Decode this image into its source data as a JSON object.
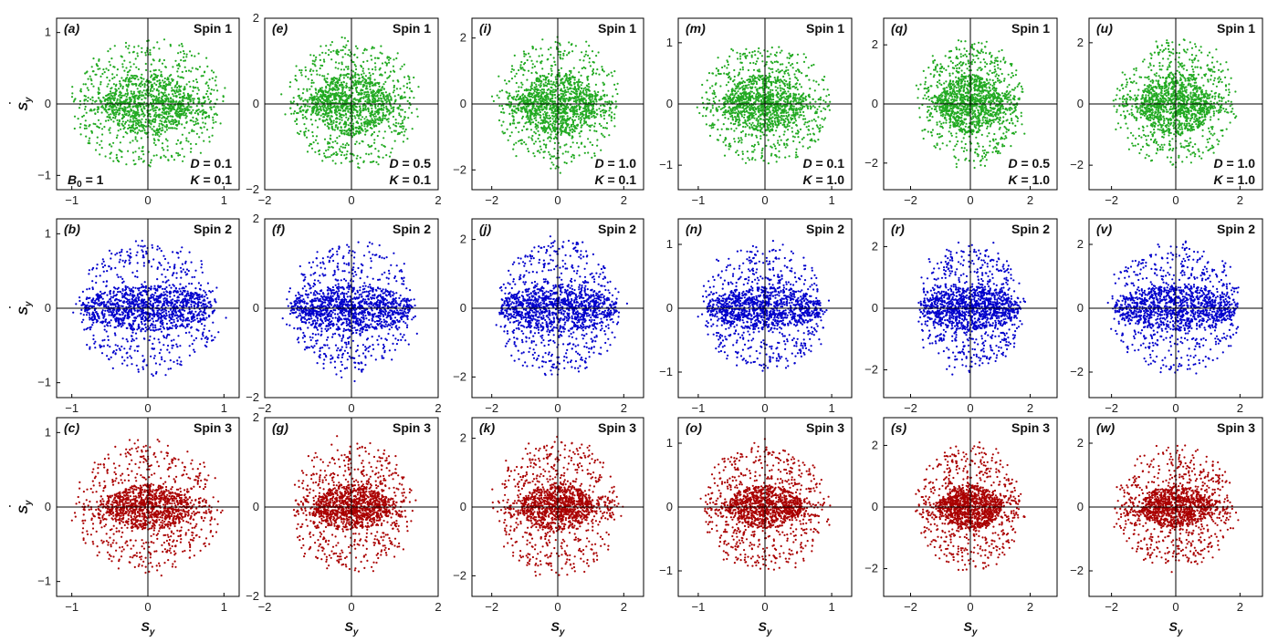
{
  "chart_data": {
    "type": "scatter",
    "figure_description": "Phase portraits (S_y vs dS_y/dt) for three spins under varying D and K",
    "rows": [
      "Spin 1",
      "Spin 2",
      "Spin 3"
    ],
    "row_colors": [
      "#22aa22",
      "#0000cc",
      "#aa0000"
    ],
    "x_axis_title": {
      "main": "S",
      "sub": "y"
    },
    "y_axis_title": {
      "main": "S",
      "sub": "y",
      "dot": "˙"
    },
    "columns": [
      {
        "letters": [
          "(a)",
          "(b)",
          "(c)"
        ],
        "D": "0.1",
        "K": "0.1",
        "extra_label": "B",
        "extra_sub": "0",
        "extra_value": " = 1",
        "xlim": [
          -1.2,
          1.2
        ],
        "xticks": [
          -1,
          0,
          1
        ],
        "xtick_labels": [
          "−1",
          "0",
          "1"
        ],
        "ylim": [
          -1.2,
          1.2
        ],
        "yticks": [
          -1,
          0,
          1
        ],
        "ytick_labels": [
          "−1",
          "0",
          "1"
        ],
        "x_amp": [
          1.05,
          1.0,
          1.0
        ],
        "y_amp": [
          0.95,
          0.95,
          0.95
        ]
      },
      {
        "letters": [
          "(e)",
          "(f)",
          "(g)"
        ],
        "D": "0.5",
        "K": "0.1",
        "xlim": [
          -2,
          2
        ],
        "xticks": [
          -2,
          0,
          2
        ],
        "xtick_labels": [
          "−2",
          "0",
          "2"
        ],
        "ylim": [
          -2,
          2
        ],
        "yticks": [
          -2,
          0,
          2
        ],
        "ytick_labels": [
          "−2",
          "0",
          "2"
        ],
        "x_amp": [
          1.6,
          1.6,
          1.5
        ],
        "y_amp": [
          1.6,
          1.6,
          1.6
        ]
      },
      {
        "letters": [
          "(i)",
          "(j)",
          "(k)"
        ],
        "D": "1.0",
        "K": "0.1",
        "xlim": [
          -2.6,
          2.6
        ],
        "xticks": [
          -2,
          0,
          2
        ],
        "xtick_labels": [
          "−2",
          "0",
          "2"
        ],
        "ylim": [
          -2.6,
          2.6
        ],
        "yticks": [
          -2,
          0,
          2
        ],
        "ytick_labels": [
          "−2",
          "0",
          "2"
        ],
        "x_amp": [
          2.0,
          2.0,
          2.0
        ],
        "y_amp": [
          2.1,
          2.1,
          2.1
        ]
      },
      {
        "letters": [
          "(m)",
          "(n)",
          "(o)"
        ],
        "D": "0.1",
        "K": "1.0",
        "xlim": [
          -1.3,
          1.3
        ],
        "xticks": [
          -1,
          0,
          1
        ],
        "xtick_labels": [
          "−1",
          "0",
          "1"
        ],
        "ylim": [
          -1.4,
          1.4
        ],
        "yticks": [
          -1,
          0,
          1
        ],
        "ytick_labels": [
          "−1",
          "0",
          "1"
        ],
        "x_amp": [
          1.05,
          1.0,
          1.0
        ],
        "y_amp": [
          1.05,
          1.05,
          1.05
        ]
      },
      {
        "letters": [
          "(q)",
          "(r)",
          "(s)"
        ],
        "D": "0.5",
        "K": "1.0",
        "xlim": [
          -2.9,
          2.9
        ],
        "xticks": [
          -2,
          0,
          2
        ],
        "xtick_labels": [
          "−2",
          "0",
          "2"
        ],
        "ylim": [
          -2.9,
          2.9
        ],
        "yticks": [
          -2,
          0,
          2
        ],
        "ytick_labels": [
          "−2",
          "0",
          "2"
        ],
        "x_amp": [
          1.9,
          1.9,
          1.9
        ],
        "y_amp": [
          2.2,
          2.2,
          2.2
        ]
      },
      {
        "letters": [
          "(u)",
          "(v)",
          "(w)"
        ],
        "D": "1.0",
        "K": "1.0",
        "xlim": [
          -2.7,
          2.7
        ],
        "xticks": [
          -2,
          0,
          2
        ],
        "xtick_labels": [
          "−2",
          "0",
          "2"
        ],
        "ylim": [
          -2.8,
          2.8
        ],
        "yticks": [
          -2,
          0,
          2
        ],
        "ytick_labels": [
          "−2",
          "0",
          "2"
        ],
        "x_amp": [
          2.0,
          2.2,
          2.0
        ],
        "y_amp": [
          2.2,
          2.2,
          2.0
        ]
      }
    ]
  }
}
